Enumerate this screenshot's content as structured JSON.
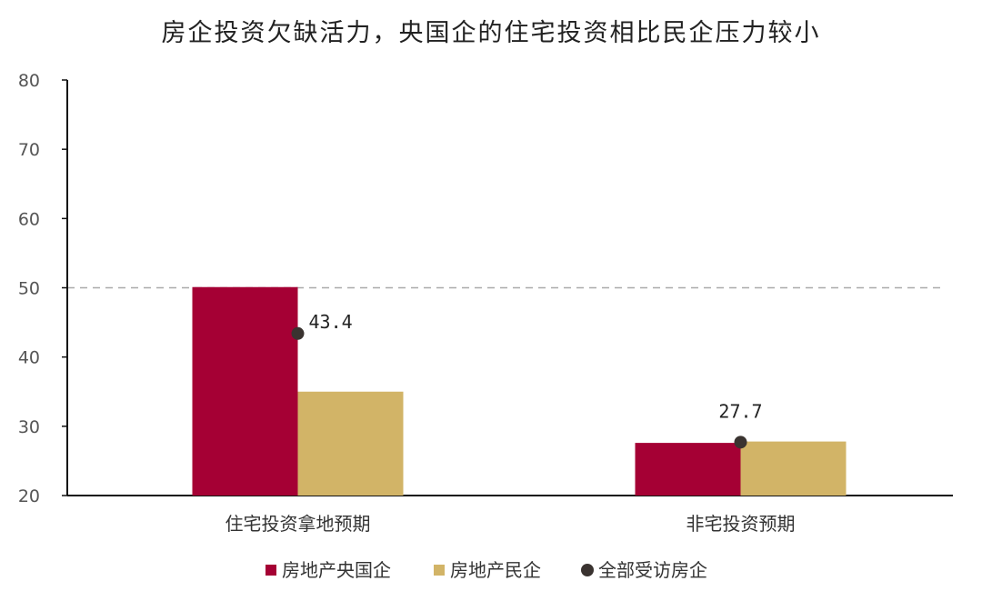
{
  "chart_data": {
    "type": "bar",
    "title": "房企投资欠缺活力，央国企的住宅投资相比民企压力较小",
    "categories": [
      "住宅投资拿地预期",
      "非宅投资预期"
    ],
    "series": [
      {
        "name": "房地产央国企",
        "type": "bar",
        "color": "#A50034",
        "values": [
          50.1,
          27.6
        ]
      },
      {
        "name": "房地产民企",
        "type": "bar",
        "color": "#D2B467",
        "values": [
          35.0,
          27.8
        ]
      },
      {
        "name": "全部受访房企",
        "type": "scatter",
        "color": "#3A3330",
        "values": [
          43.4,
          27.7
        ],
        "labels": [
          "43.4",
          "27.7"
        ]
      }
    ],
    "ylim": [
      20,
      80
    ],
    "yticks": [
      20,
      30,
      40,
      50,
      60,
      70,
      80
    ],
    "reference_line": {
      "value": 50,
      "style": "dashed"
    },
    "grid": false,
    "legend": "bottom"
  }
}
